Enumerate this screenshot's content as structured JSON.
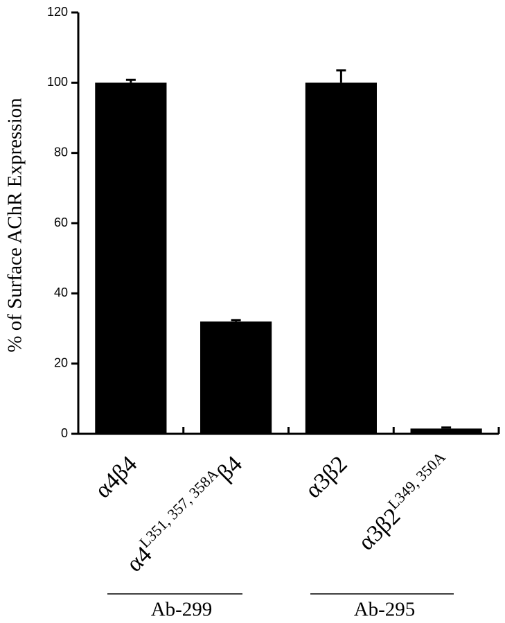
{
  "chart_data": {
    "type": "bar",
    "y_label": "% of Surface AChR Expression",
    "categories": [
      "α4β4",
      "α4L351, 357, 358Aβ4",
      "α3β2",
      "α3β2L349, 350A"
    ],
    "values": [
      100,
      32,
      100,
      1.5
    ],
    "errors": [
      0.8,
      0.4,
      3.5,
      0.3
    ],
    "color": "#000000",
    "ylim": [
      0,
      120
    ],
    "yticks": [
      0,
      20,
      40,
      60,
      80,
      100,
      120
    ],
    "group_labels": [
      "Ab-299",
      "Ab-295"
    ]
  }
}
